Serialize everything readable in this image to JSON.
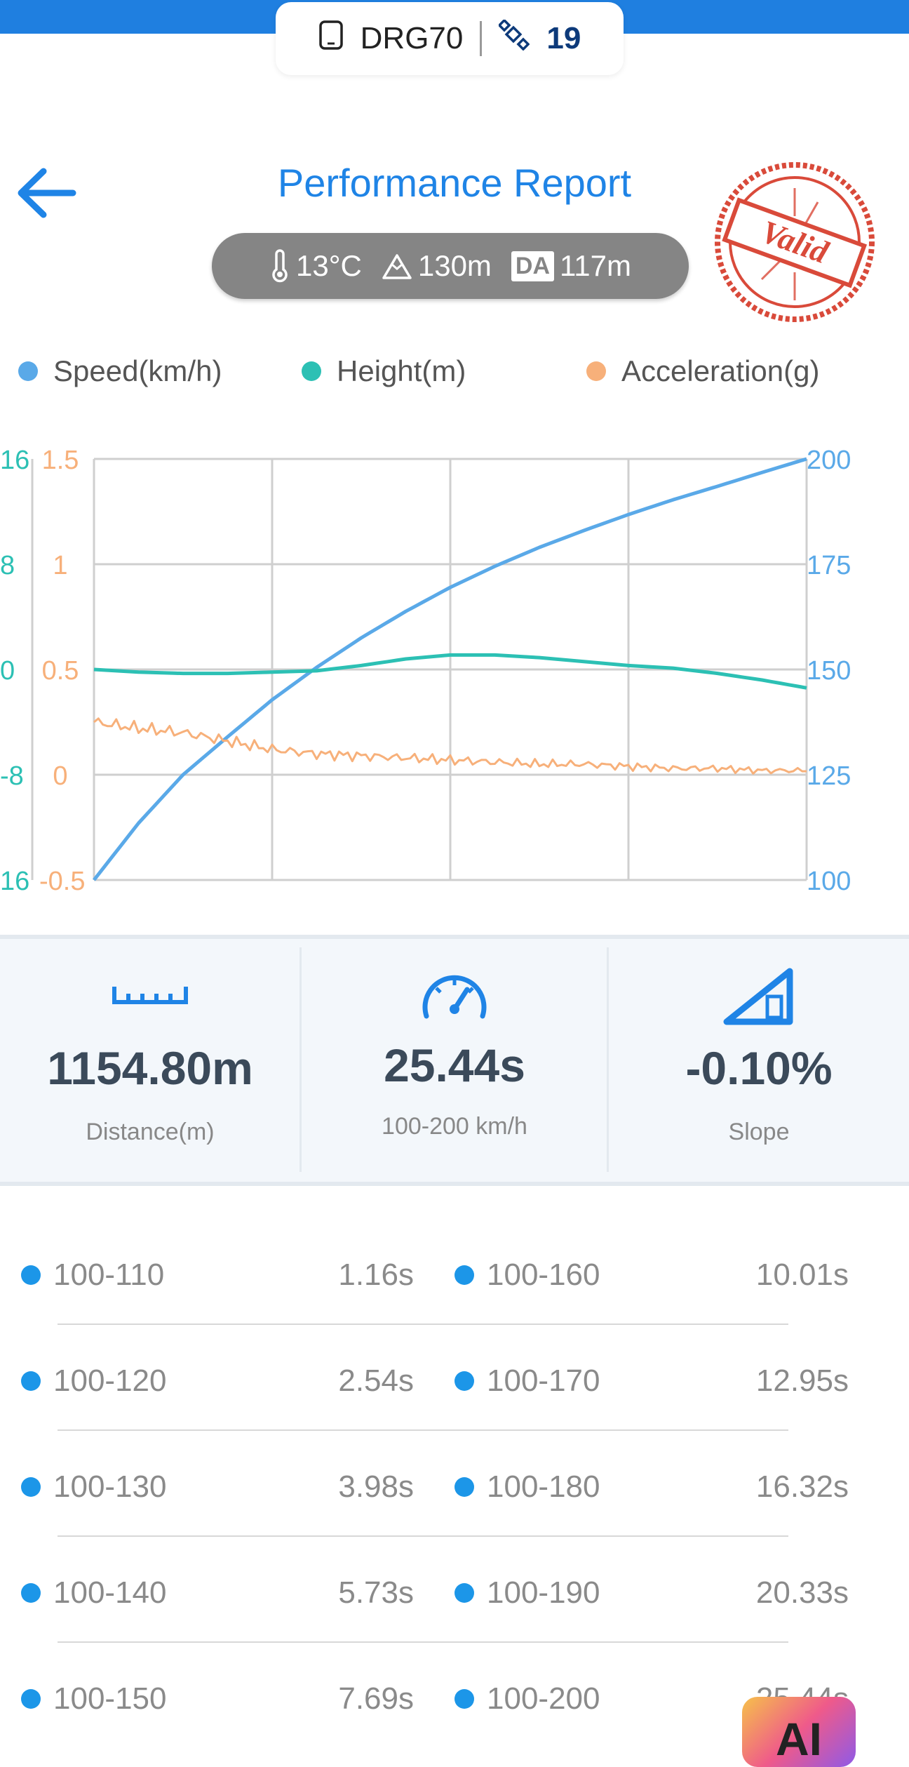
{
  "status_bar": {
    "device_name": "DRG70",
    "satellite_count": "19"
  },
  "header": {
    "title": "Performance Report",
    "stamp_text": "Valid"
  },
  "conditions": {
    "temperature": "13°C",
    "altitude": "130m",
    "da_label": "DA",
    "density_altitude": "117m"
  },
  "legend": [
    {
      "label": "Speed(km/h)",
      "color": "#5aa9e8"
    },
    {
      "label": "Height(m)",
      "color": "#2cc0b4"
    },
    {
      "label": "Acceleration(g)",
      "color": "#f7b07a"
    }
  ],
  "chart_data": {
    "type": "line",
    "axes": {
      "height_ticks": [
        "16",
        "8",
        "0",
        "-8",
        "16"
      ],
      "accel_ticks": [
        "1.5",
        "1",
        "0.5",
        "0",
        "-0.5"
      ],
      "speed_ticks": [
        "200",
        "175",
        "150",
        "125",
        "100"
      ],
      "height_range": [
        -16,
        16
      ],
      "accel_range": [
        -0.5,
        1.5
      ],
      "speed_range": [
        100,
        200
      ]
    },
    "grid": true,
    "series": [
      {
        "name": "Speed(km/h)",
        "axis": "right",
        "color": "#5aa9e8",
        "values": [
          100,
          113.5,
          125,
          134,
          142.8,
          150.5,
          157.5,
          163.8,
          169.5,
          174.5,
          179,
          183,
          186.8,
          190.3,
          193.5,
          196.8,
          200
        ]
      },
      {
        "name": "Height(m)",
        "axis": "left-outer",
        "color": "#2cc0b4",
        "values": [
          0,
          -0.2,
          -0.3,
          -0.3,
          -0.2,
          -0.1,
          0.3,
          0.8,
          1.1,
          1.1,
          0.9,
          0.6,
          0.3,
          0.1,
          -0.3,
          -0.8,
          -1.4
        ]
      },
      {
        "name": "Acceleration(g)",
        "axis": "left-inner",
        "color": "#f7b07a",
        "values": [
          0.25,
          0.22,
          0.2,
          0.16,
          0.12,
          0.1,
          0.09,
          0.08,
          0.07,
          0.06,
          0.05,
          0.05,
          0.04,
          0.03,
          0.03,
          0.02,
          0.02
        ]
      }
    ]
  },
  "stats": [
    {
      "icon": "ruler-icon",
      "value": "1154.80m",
      "label": "Distance(m)"
    },
    {
      "icon": "speedometer-icon",
      "value": "25.44s",
      "label": "100-200 km/h"
    },
    {
      "icon": "slope-icon",
      "value": "-0.10%",
      "label": "Slope"
    }
  ],
  "splits": [
    {
      "range": "100-110",
      "time": "1.16s",
      "range2": "100-160",
      "time2": "10.01s"
    },
    {
      "range": "100-120",
      "time": "2.54s",
      "range2": "100-170",
      "time2": "12.95s"
    },
    {
      "range": "100-130",
      "time": "3.98s",
      "range2": "100-180",
      "time2": "16.32s"
    },
    {
      "range": "100-140",
      "time": "5.73s",
      "range2": "100-190",
      "time2": "20.33s"
    },
    {
      "range": "100-150",
      "time": "7.69s",
      "range2": "100-200",
      "time2": "25.44s"
    }
  ],
  "ai_badge": "AI"
}
